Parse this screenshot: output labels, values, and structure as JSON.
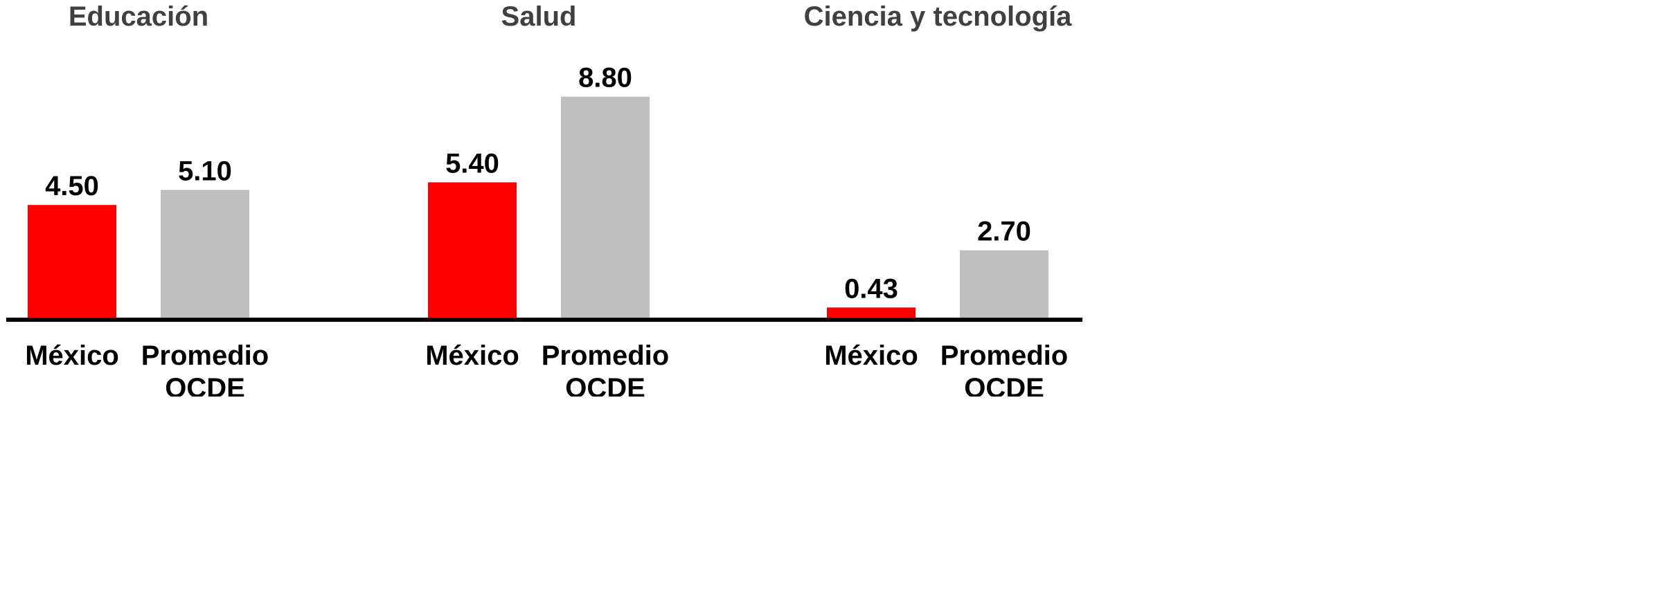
{
  "chart_data": {
    "type": "bar",
    "groups": [
      {
        "title": "Educación",
        "bars": [
          {
            "label": [
              "México"
            ],
            "value": 4.5,
            "value_text": "4.50",
            "color": "#ff0000"
          },
          {
            "label": [
              "Promedio",
              "OCDE"
            ],
            "value": 5.1,
            "value_text": "5.10",
            "color": "#bfbfbf"
          }
        ]
      },
      {
        "title": "Salud",
        "bars": [
          {
            "label": [
              "México"
            ],
            "value": 5.4,
            "value_text": "5.40",
            "color": "#ff0000"
          },
          {
            "label": [
              "Promedio",
              "OCDE"
            ],
            "value": 8.8,
            "value_text": "8.80",
            "color": "#bfbfbf"
          }
        ]
      },
      {
        "title": "Ciencia y tecnología",
        "bars": [
          {
            "label": [
              "México"
            ],
            "value": 0.43,
            "value_text": "0.43",
            "color": "#ff0000"
          },
          {
            "label": [
              "Promedio",
              "OCDE"
            ],
            "value": 2.7,
            "value_text": "2.70",
            "color": "#bfbfbf"
          }
        ]
      }
    ],
    "ylim": [
      0,
      10
    ],
    "grid": false,
    "baseline_color": "#000000",
    "title_color": "#404040"
  }
}
